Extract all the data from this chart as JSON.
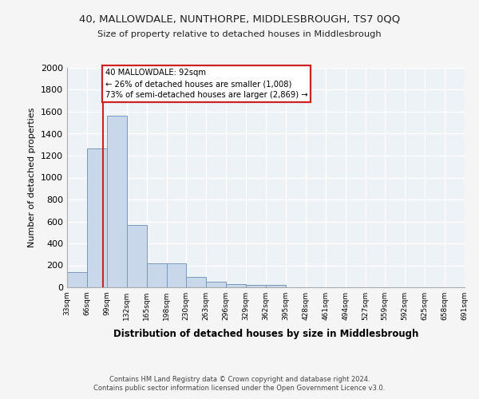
{
  "title1": "40, MALLOWDALE, NUNTHORPE, MIDDLESBROUGH, TS7 0QQ",
  "title2": "Size of property relative to detached houses in Middlesbrough",
  "xlabel": "Distribution of detached houses by size in Middlesbrough",
  "ylabel": "Number of detached properties",
  "footer1": "Contains HM Land Registry data © Crown copyright and database right 2024.",
  "footer2": "Contains public sector information licensed under the Open Government Licence v3.0.",
  "annotation_title": "40 MALLOWDALE: 92sqm",
  "annotation_line1": "← 26% of detached houses are smaller (1,008)",
  "annotation_line2": "73% of semi-detached houses are larger (2,869) →",
  "property_size": 92,
  "bin_edges": [
    33,
    66,
    99,
    132,
    165,
    198,
    230,
    263,
    296,
    329,
    362,
    395,
    428,
    461,
    494,
    527,
    559,
    592,
    625,
    658,
    691
  ],
  "bar_heights": [
    140,
    1265,
    1565,
    565,
    220,
    220,
    95,
    50,
    27,
    20,
    20,
    0,
    0,
    0,
    0,
    0,
    0,
    0,
    0,
    0
  ],
  "bar_color": "#c8d8ea",
  "bar_edge_color": "#7799bb",
  "line_color": "#cc2222",
  "bg_color": "#f5f5f5",
  "plot_bg_color": "#edf2f7",
  "grid_color": "#ffffff",
  "ylim": [
    0,
    2000
  ],
  "yticks": [
    0,
    200,
    400,
    600,
    800,
    1000,
    1200,
    1400,
    1600,
    1800,
    2000
  ],
  "xtick_labels": [
    "33sqm",
    "66sqm",
    "99sqm",
    "132sqm",
    "165sqm",
    "198sqm",
    "230sqm",
    "263sqm",
    "296sqm",
    "329sqm",
    "362sqm",
    "395sqm",
    "428sqm",
    "461sqm",
    "494sqm",
    "527sqm",
    "559sqm",
    "592sqm",
    "625sqm",
    "658sqm",
    "691sqm"
  ]
}
